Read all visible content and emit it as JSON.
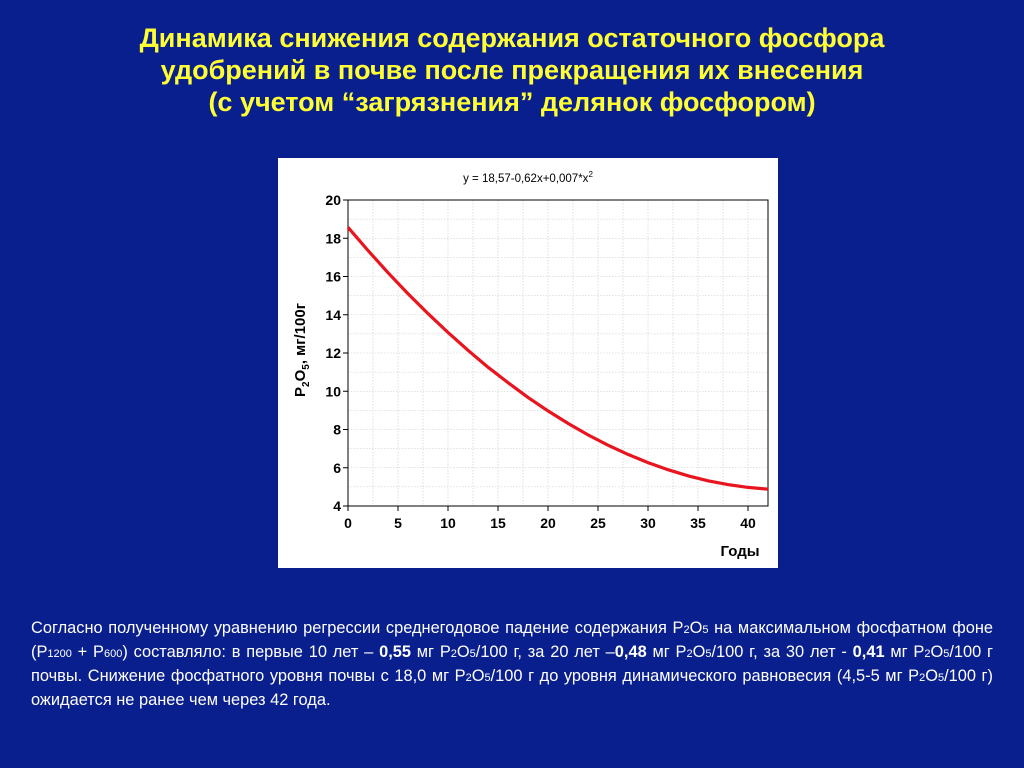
{
  "title": {
    "line1": "Динамика снижения содержания остаточного фосфора",
    "line2": "удобрений в почве после прекращения их внесения",
    "line3": "(с учетом “загрязнения” делянок фосфором)"
  },
  "chart_data": {
    "type": "line",
    "equation_prefix": "y = 18,57-0,62x+0,007*x",
    "equation_exp": "2",
    "xlabel": "Годы",
    "ylabel_parts": [
      "P",
      "2",
      "O",
      "5",
      ", мг/100г"
    ],
    "xlim": [
      0,
      42
    ],
    "ylim": [
      4,
      20
    ],
    "x_ticks": [
      "0",
      "5",
      "10",
      "15",
      "20",
      "25",
      "30",
      "35",
      "40"
    ],
    "y_ticks": [
      "4",
      "6",
      "8",
      "10",
      "12",
      "14",
      "16",
      "18",
      "20"
    ],
    "grid": true,
    "series": [
      {
        "color": "#e8141e",
        "x": [
          0,
          2,
          4,
          6,
          8,
          10,
          12,
          14,
          16,
          18,
          20,
          22,
          24,
          26,
          28,
          30,
          32,
          34,
          36,
          38,
          40,
          42
        ],
        "y": [
          18.57,
          17.36,
          16.2,
          15.1,
          14.06,
          13.07,
          12.14,
          11.26,
          10.45,
          9.68,
          8.97,
          8.32,
          7.72,
          7.18,
          6.7,
          6.27,
          5.9,
          5.58,
          5.32,
          5.12,
          4.97,
          4.88
        ]
      }
    ]
  },
  "text": {
    "l1a": "Согласно полученному уравнению регрессии среднегодовое падение содержания P",
    "l1b": "2",
    "l1c": "O",
    "l1d": "5",
    "l1e": " на максимальном фосфатном фоне (P",
    "l1f": "1200",
    "l1g": " + P",
    "l1h": "600",
    "l1i": ") составляло: в первые 10 лет – ",
    "v1": "0,55",
    "l2a": " мг P",
    "l2b": "2",
    "l2c": "O",
    "l2d": "5",
    "l2e": "/100 г,  за 20 лет –",
    "v2": "0,48",
    "l2f": " мг P",
    "l2g": "2",
    "l2h": "O",
    "l2i": "5",
    "l2j": "/100 г, за 30 лет -  ",
    "v3": "0,41",
    "l2k": " мг P",
    "l2l": "2",
    "l2m": "O",
    "l2n": "5",
    "l2o": "/100 г почвы. Снижение фосфатного уровня почвы с 18,0 мг P",
    "l3a": "2",
    "l3b": "O",
    "l3c": "5",
    "l3d": "/100 г до  уровня динамического равновесия  (4,5-5 мг P",
    "l3e": "2",
    "l3f": "O",
    "l3g": "5",
    "l3h": "/100 г) ожидается не ранее чем через 42 года."
  }
}
